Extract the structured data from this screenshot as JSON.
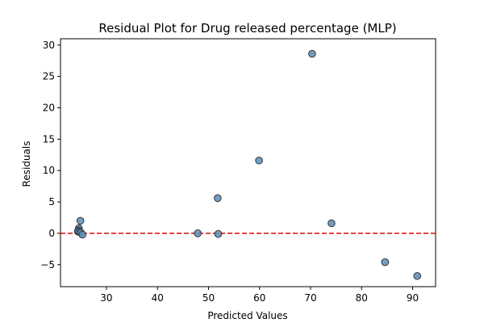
{
  "chart_data": {
    "type": "scatter",
    "title": "Residual Plot for Drug released percentage (MLP)",
    "xlabel": "Predicted Values",
    "ylabel": "Residuals",
    "xlim": [
      21.0,
      94.5
    ],
    "ylim": [
      -8.5,
      31.0
    ],
    "xticks": [
      30,
      40,
      50,
      60,
      70,
      80,
      90
    ],
    "yticks": [
      -5,
      0,
      5,
      10,
      15,
      20,
      25,
      30
    ],
    "grid": false,
    "reference_line": {
      "y": 0,
      "color": "#e41a1c",
      "style": "dashed"
    },
    "marker_color": "#5b8db8",
    "marker_edge_color": "#333333",
    "points": [
      {
        "x": 70.3,
        "y": 28.6
      },
      {
        "x": 59.9,
        "y": 11.6
      },
      {
        "x": 51.8,
        "y": 5.6
      },
      {
        "x": 74.1,
        "y": 1.6
      },
      {
        "x": 24.9,
        "y": 2.0
      },
      {
        "x": 24.6,
        "y": 0.8
      },
      {
        "x": 24.5,
        "y": 0.5
      },
      {
        "x": 24.4,
        "y": 0.3
      },
      {
        "x": 24.7,
        "y": 0.2
      },
      {
        "x": 25.0,
        "y": 0.1
      },
      {
        "x": 25.3,
        "y": -0.2
      },
      {
        "x": 47.9,
        "y": 0.0
      },
      {
        "x": 51.9,
        "y": -0.1
      },
      {
        "x": 84.6,
        "y": -4.6
      },
      {
        "x": 90.9,
        "y": -6.8
      }
    ]
  }
}
